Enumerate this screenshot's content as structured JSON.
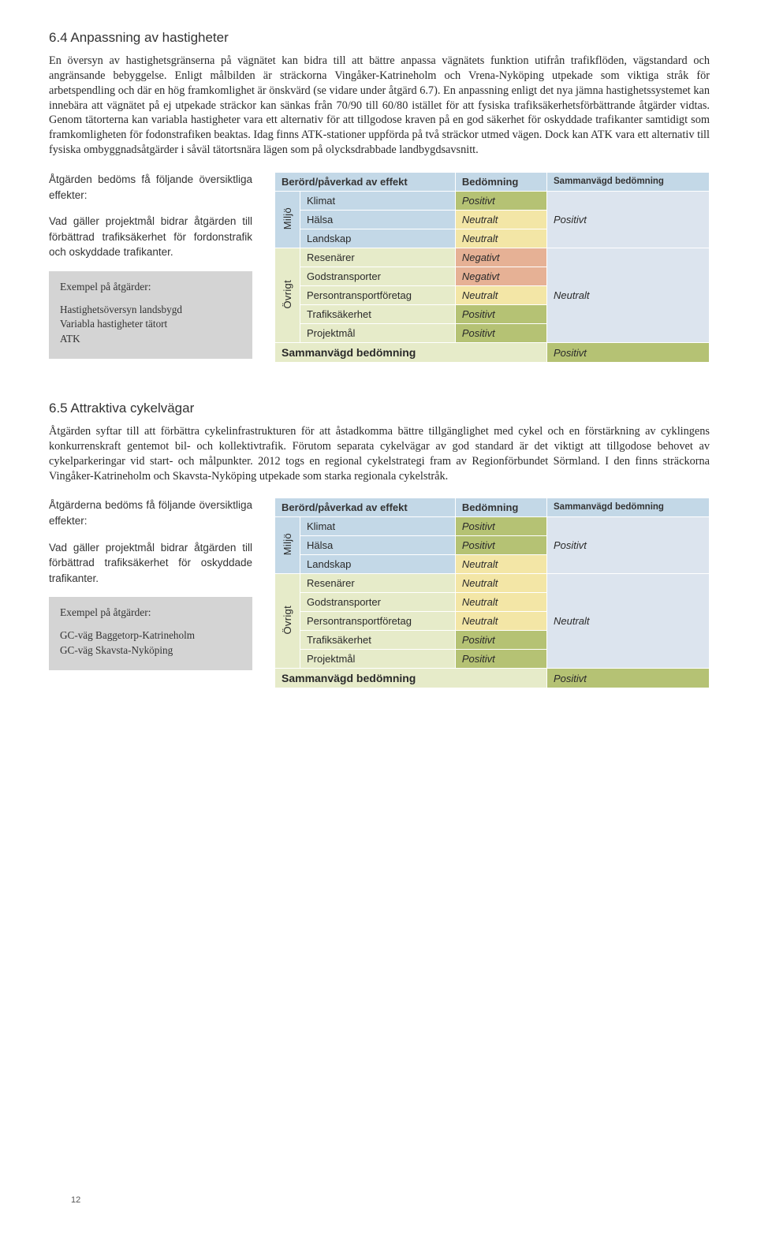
{
  "section1": {
    "heading": "6.4  Anpassning av hastigheter",
    "para": "En översyn av hastighetsgränserna på vägnätet kan bidra till att bättre anpassa vägnätets funktion utifrån trafikflöden, vägstandard och angränsande bebyggelse. Enligt målbilden är sträckorna Vingåker-Katrineholm och Vrena-Nyköping utpekade som viktiga stråk för arbetspendling och där en hög framkomlighet är önskvärd (se vidare under åtgärd 6.7). En anpassning enligt det nya jämna hastighetssystemet kan innebära att vägnätet på ej utpekade sträckor kan sänkas från 70/90 till 60/80 istället för att fysiska trafiksäkerhetsförbättrande åtgärder vidtas. Genom tätorterna kan variabla hastigheter vara ett alternativ för att tillgodose kraven på en god säkerhet för oskyddade trafikanter samtidigt som framkomligheten för fodonstrafiken beaktas. Idag finns ATK-stationer uppförda på två sträckor utmed vägen. Dock kan ATK vara ett alternativ till fysiska ombyggnadsåtgärder i såväl tätortsnära lägen som på olycksdrabbade landbygdsavsnitt.",
    "intro1": "Åtgärden bedöms få följande översiktliga effekter:",
    "intro2": "Vad gäller projektmål bidrar åtgärden till förbättrad trafik­säkerhet för fordonstrafik och oskyddade trafikanter.",
    "exampleTitle": "Exempel på åtgärder:",
    "examples": [
      "Hastighetsöversyn landsbygd",
      "Variabla hastigheter tätort",
      "ATK"
    ],
    "table": {
      "hBerord": "Berörd/påverkad av effekt",
      "hBedom": "Bedömning",
      "hSamman": "Sammanvägd bedömning",
      "miljoLabel": "Miljö",
      "ovrigtLabel": "Övrigt",
      "miljoRows": [
        {
          "label": "Klimat",
          "val": "Positivt",
          "cls": "cell-green"
        },
        {
          "label": "Hälsa",
          "val": "Neutralt",
          "cls": "cell-yellow"
        },
        {
          "label": "Landskap",
          "val": "Neutralt",
          "cls": "cell-yellow"
        }
      ],
      "ovrigtRows": [
        {
          "label": "Resenärer",
          "val": "Negativt",
          "cls": "cell-red"
        },
        {
          "label": "Godstransporter",
          "val": "Negativt",
          "cls": "cell-red"
        },
        {
          "label": "Persontransportföretag",
          "val": "Neutralt",
          "cls": "cell-yellow"
        },
        {
          "label": "Trafiksäkerhet",
          "val": "Positivt",
          "cls": "cell-green"
        },
        {
          "label": "Projektmål",
          "val": "Positivt",
          "cls": "cell-green"
        }
      ],
      "sammanMiljo": "Positivt",
      "sammanOvrigt": "Neutralt",
      "summaryLabel": "Sammanvägd bedömning",
      "summaryVal": "Positivt"
    }
  },
  "section2": {
    "heading": "6.5  Attraktiva cykelvägar",
    "para": "Åtgärden syftar till att förbättra cykelinfrastrukturen för att åstadkomma bättre tillgänglighet med cykel och en förstärkning av cyklingens konkurrenskraft gentemot bil- och kollektivtrafik.  Förutom separata cykelvägar av god standard är det viktigt att tillgodose behovet av cykelparkeringar vid start- och målpunkter. 2012 togs en regional cykelstrategi fram av Regionförbundet Sörmland. I den finns sträckorna Vingåker-Katrineholm och Skavsta-Nyköping utpekade som starka regionala cykelstråk.",
    "intro1": "Åtgärderna bedöms få följande översiktliga effekter:",
    "intro2": "Vad gäller projektmål bidrar åtgärden till förbättrad tra­fiksäkerhet för oskyddade trafikanter.",
    "exampleTitle": "Exempel på åtgärder:",
    "examples": [
      "GC-väg Baggetorp-Katrineholm",
      "GC-väg Skavsta-Nyköping"
    ],
    "table": {
      "hBerord": "Berörd/påverkad av effekt",
      "hBedom": "Bedömning",
      "hSamman": "Sammanvägd bedömning",
      "miljoLabel": "Miljö",
      "ovrigtLabel": "Övrigt",
      "miljoRows": [
        {
          "label": "Klimat",
          "val": "Positivt",
          "cls": "cell-green"
        },
        {
          "label": "Hälsa",
          "val": "Positivt",
          "cls": "cell-green"
        },
        {
          "label": "Landskap",
          "val": "Neutralt",
          "cls": "cell-yellow"
        }
      ],
      "ovrigtRows": [
        {
          "label": "Resenärer",
          "val": "Neutralt",
          "cls": "cell-yellow"
        },
        {
          "label": "Godstransporter",
          "val": "Neutralt",
          "cls": "cell-yellow"
        },
        {
          "label": "Persontransportföretag",
          "val": "Neutralt",
          "cls": "cell-yellow"
        },
        {
          "label": "Trafiksäkerhet",
          "val": "Positivt",
          "cls": "cell-green"
        },
        {
          "label": "Projektmål",
          "val": "Positivt",
          "cls": "cell-green"
        }
      ],
      "sammanMiljo": "Positivt",
      "sammanOvrigt": "Neutralt",
      "summaryLabel": "Sammanvägd bedömning",
      "summaryVal": "Positivt"
    }
  },
  "pageNumber": "12"
}
